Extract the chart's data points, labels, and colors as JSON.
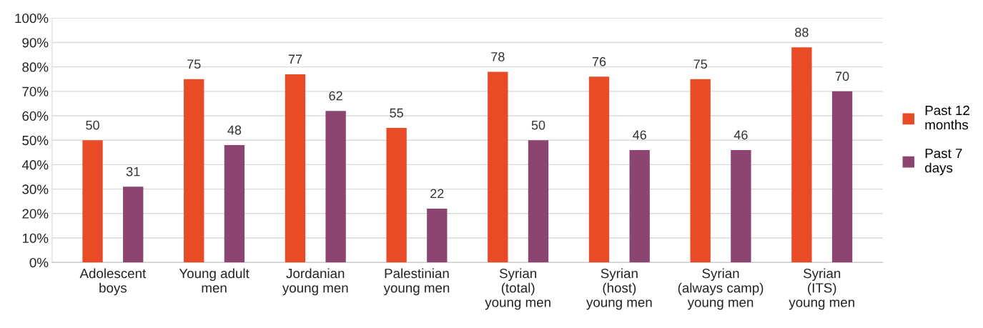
{
  "chart_data": {
    "type": "bar",
    "categories": [
      "Adolescent\nboys",
      "Young adult\nmen",
      "Jordanian\nyoung men",
      "Palestinian\nyoung men",
      "Syrian\n(total)\nyoung men",
      "Syrian\n(host)\nyoung men",
      "Syrian\n(always camp)\nyoung men",
      "Syrian\n(ITS)\nyoung men"
    ],
    "series": [
      {
        "name": "Past 12\nmonths",
        "color": "#e84b26",
        "values": [
          50,
          75,
          77,
          55,
          78,
          76,
          75,
          88
        ]
      },
      {
        "name": "Past 7\ndays",
        "color": "#8b4570",
        "values": [
          31,
          48,
          62,
          22,
          50,
          46,
          46,
          70
        ]
      }
    ],
    "ylim": [
      0,
      100
    ],
    "yticks": [
      {
        "value": 0,
        "label": "0%"
      },
      {
        "value": 10,
        "label": "10%"
      },
      {
        "value": 20,
        "label": "20%"
      },
      {
        "value": 30,
        "label": "30%"
      },
      {
        "value": 40,
        "label": "40%"
      },
      {
        "value": 50,
        "label": "50%"
      },
      {
        "value": 60,
        "label": "60%"
      },
      {
        "value": 70,
        "label": "70%"
      },
      {
        "value": 80,
        "label": "80%"
      },
      {
        "value": 90,
        "label": "90%"
      },
      {
        "value": 100,
        "label": "100%"
      }
    ],
    "grid": "y",
    "legend": "right",
    "data_labels": true
  }
}
